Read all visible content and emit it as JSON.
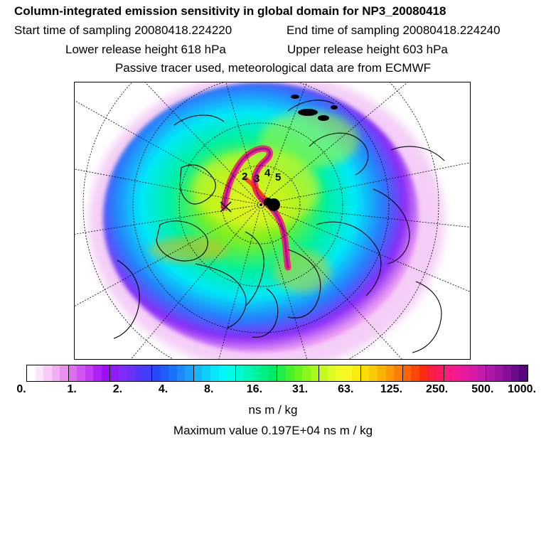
{
  "header": {
    "title": "Column-integrated emission sensitivity in global domain for NP3_20080418",
    "start_time": "Start time of sampling 20080418.224220",
    "end_time": "End time of sampling 20080418.224240",
    "lower_height": "Lower release height  618 hPa",
    "upper_height": "Upper release height  603 hPa",
    "tracer_note": "Passive tracer used, meteorological data are from ECMWF"
  },
  "map": {
    "projection": "polar stereographic, north pole",
    "trajectory_labels": [
      "2",
      "3",
      "4",
      "5"
    ]
  },
  "legend": {
    "ticks": [
      "0.",
      "1.",
      "2.",
      "4.",
      "8.",
      "16.",
      "31.",
      "63.",
      "125.",
      "250.",
      "500.",
      "1000."
    ],
    "colors": [
      "#ffffff",
      "#fbe6fb",
      "#f7cdf7",
      "#f0b0f3",
      "#e88ff0",
      "#dd70ee",
      "#cf55f0",
      "#c23cf3",
      "#b020f6",
      "#9b10f8",
      "#8f1cf5",
      "#7f2cf8",
      "#6a30fa",
      "#5536fb",
      "#4040fb",
      "#2a48fb",
      "#1e5cfb",
      "#1a72fb",
      "#1a8afb",
      "#1aa2fb",
      "#12b8fb",
      "#0cd0fb",
      "#07e6fb",
      "#00f6fb",
      "#00fbe6",
      "#00f9cf",
      "#00f6b4",
      "#00f29a",
      "#00ee82",
      "#00ea66",
      "#22ee4a",
      "#44f22e",
      "#66f41e",
      "#8af61a",
      "#a8f81c",
      "#c4fa1e",
      "#ddfb22",
      "#eefb24",
      "#f8f820",
      "#fbec10",
      "#fbdc08",
      "#fbca06",
      "#fbb204",
      "#fb9a04",
      "#fb8004",
      "#fb6406",
      "#fb480a",
      "#fb2c10",
      "#fb1a40",
      "#fb1a62",
      "#fb1a82",
      "#f41a96",
      "#e81aa0",
      "#d81aa8",
      "#c41aaa",
      "#b018a8",
      "#9a14a2",
      "#84109a",
      "#6c0c8c",
      "#54087a"
    ],
    "units": "ns m / kg",
    "max_value": "Maximum value  0.197E+04 ns m / kg"
  }
}
